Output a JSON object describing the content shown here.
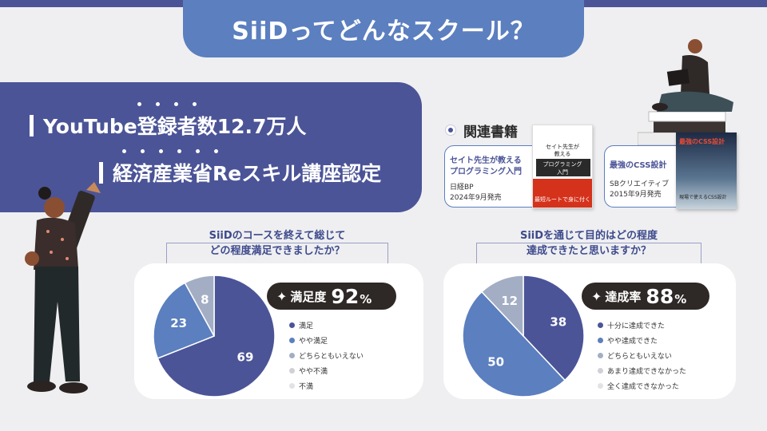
{
  "header": {
    "title": "SiiDってどんなスクール？"
  },
  "stats": [
    {
      "text": "YouTube登録者数12.7万人"
    },
    {
      "text": "経済産業省Reスキル講座認定"
    }
  ],
  "related": {
    "title": "関連書籍",
    "books": [
      {
        "name_line1": "セイト先生が教える",
        "name_line2": "プログラミング入門",
        "publisher": "日経BP",
        "date": "2024年9月発売",
        "cover_title_1": "セイト先生が",
        "cover_title_2": "教える",
        "cover_band": "プログラミング",
        "cover_band_2": "入門",
        "cover_bottom": "最短ルートで身に付く"
      },
      {
        "name": "最強のCSS設計",
        "publisher": "SBクリエイティブ",
        "date": "2015年9月発売",
        "cover_title": "最強のCSS設計",
        "cover_sub": "現場で使えるCSS設計"
      }
    ]
  },
  "survey1": {
    "question_line1": "SiiDのコースを終えて総じて",
    "question_line2": "どの程度満足できましたか？",
    "score_label": "満足度",
    "score_value": "92",
    "score_unit": "%",
    "legend": [
      "満足",
      "やや満足",
      "どちらともいえない",
      "やや不満",
      "不満"
    ]
  },
  "survey2": {
    "question_line1": "SiiDを通じて目的はどの程度",
    "question_line2": "達成できたと思いますか？",
    "score_label": "達成率",
    "score_value": "88",
    "score_unit": "%",
    "legend": [
      "十分に達成できた",
      "やや達成できた",
      "どちらともいえない",
      "あまり達成できなかった",
      "全く達成できなかった"
    ]
  },
  "colors": {
    "accent": "#4b5497",
    "blue": "#5b7fbf",
    "gray": "#a3aec4",
    "light": "#d0d0d6",
    "faint": "#e2e2e6",
    "dark": "#2e2826"
  },
  "chart_data": [
    {
      "type": "pie",
      "categories": [
        "満足",
        "やや満足",
        "どちらともいえない",
        "やや不満",
        "不満"
      ],
      "values": [
        69,
        23,
        8,
        0,
        0
      ],
      "colors": [
        "#4b5497",
        "#5b7fbf",
        "#a3aec4",
        "#d0d0d6",
        "#e2e2e6"
      ],
      "title": "",
      "legend": "right"
    },
    {
      "type": "pie",
      "categories": [
        "十分に達成できた",
        "やや達成できた",
        "どちらともいえない",
        "あまり達成できなかった",
        "全く達成できなかった"
      ],
      "values": [
        38,
        50,
        12,
        0,
        0
      ],
      "colors": [
        "#4b5497",
        "#5b7fbf",
        "#a3aec4",
        "#d0d0d6",
        "#e2e2e6"
      ],
      "title": "",
      "legend": "right"
    }
  ]
}
